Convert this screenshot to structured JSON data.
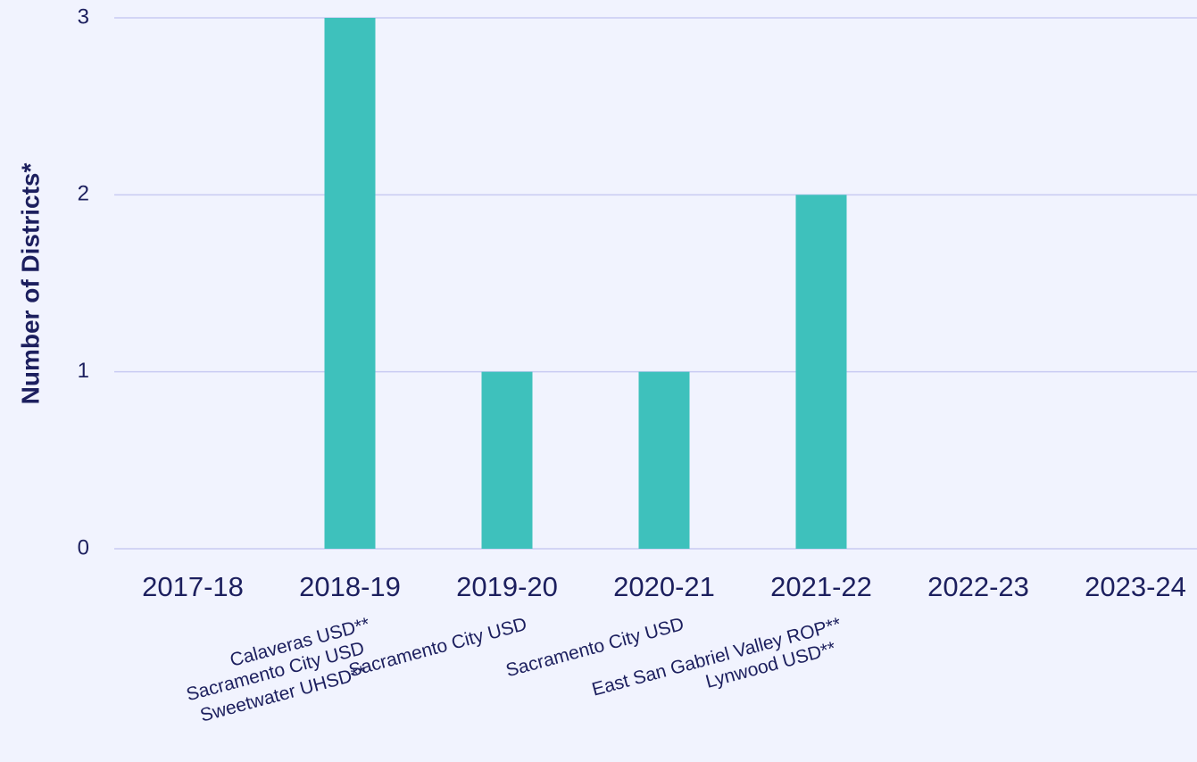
{
  "chart_data": {
    "type": "bar",
    "y_axis_label": "Number of Districts*",
    "categories": [
      "2017-18",
      "2018-19",
      "2019-20",
      "2020-21",
      "2021-22",
      "2022-23",
      "2023-24"
    ],
    "values": [
      0,
      3,
      1,
      1,
      2,
      0,
      0
    ],
    "district_labels": [
      [],
      [
        "Calaveras USD**",
        "Sacramento City USD",
        "Sweetwater UHSD**"
      ],
      [
        "Sacramento City USD"
      ],
      [
        "Sacramento City USD"
      ],
      [
        "East San Gabriel Valley ROP**",
        "Lynwood USD**"
      ],
      [],
      []
    ],
    "color": "#3ec1bc",
    "ylim": [
      0,
      3
    ],
    "yticks": [
      0,
      1,
      2,
      3
    ],
    "grid": true
  }
}
